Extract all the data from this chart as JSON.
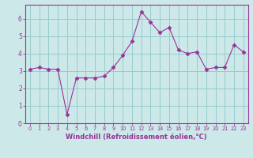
{
  "x": [
    0,
    1,
    2,
    3,
    4,
    5,
    6,
    7,
    8,
    9,
    10,
    11,
    12,
    13,
    14,
    15,
    16,
    17,
    18,
    19,
    20,
    21,
    22,
    23
  ],
  "y": [
    3.1,
    3.2,
    3.1,
    3.1,
    0.5,
    2.6,
    2.6,
    2.6,
    2.7,
    3.2,
    3.9,
    4.7,
    6.4,
    5.8,
    5.2,
    5.5,
    4.2,
    4.0,
    4.1,
    3.1,
    3.2,
    3.2,
    4.5,
    4.1
  ],
  "line_color": "#993399",
  "marker": "D",
  "marker_size": 2.5,
  "bg_color": "#cce8e8",
  "grid_color": "#99cccc",
  "xlabel": "Windchill (Refroidissement éolien,°C)",
  "xlabel_color": "#993399",
  "tick_color": "#993399",
  "xlim": [
    -0.5,
    23.5
  ],
  "ylim": [
    0,
    6.8
  ],
  "yticks": [
    0,
    1,
    2,
    3,
    4,
    5,
    6
  ],
  "xticks": [
    0,
    1,
    2,
    3,
    4,
    5,
    6,
    7,
    8,
    9,
    10,
    11,
    12,
    13,
    14,
    15,
    16,
    17,
    18,
    19,
    20,
    21,
    22,
    23
  ]
}
